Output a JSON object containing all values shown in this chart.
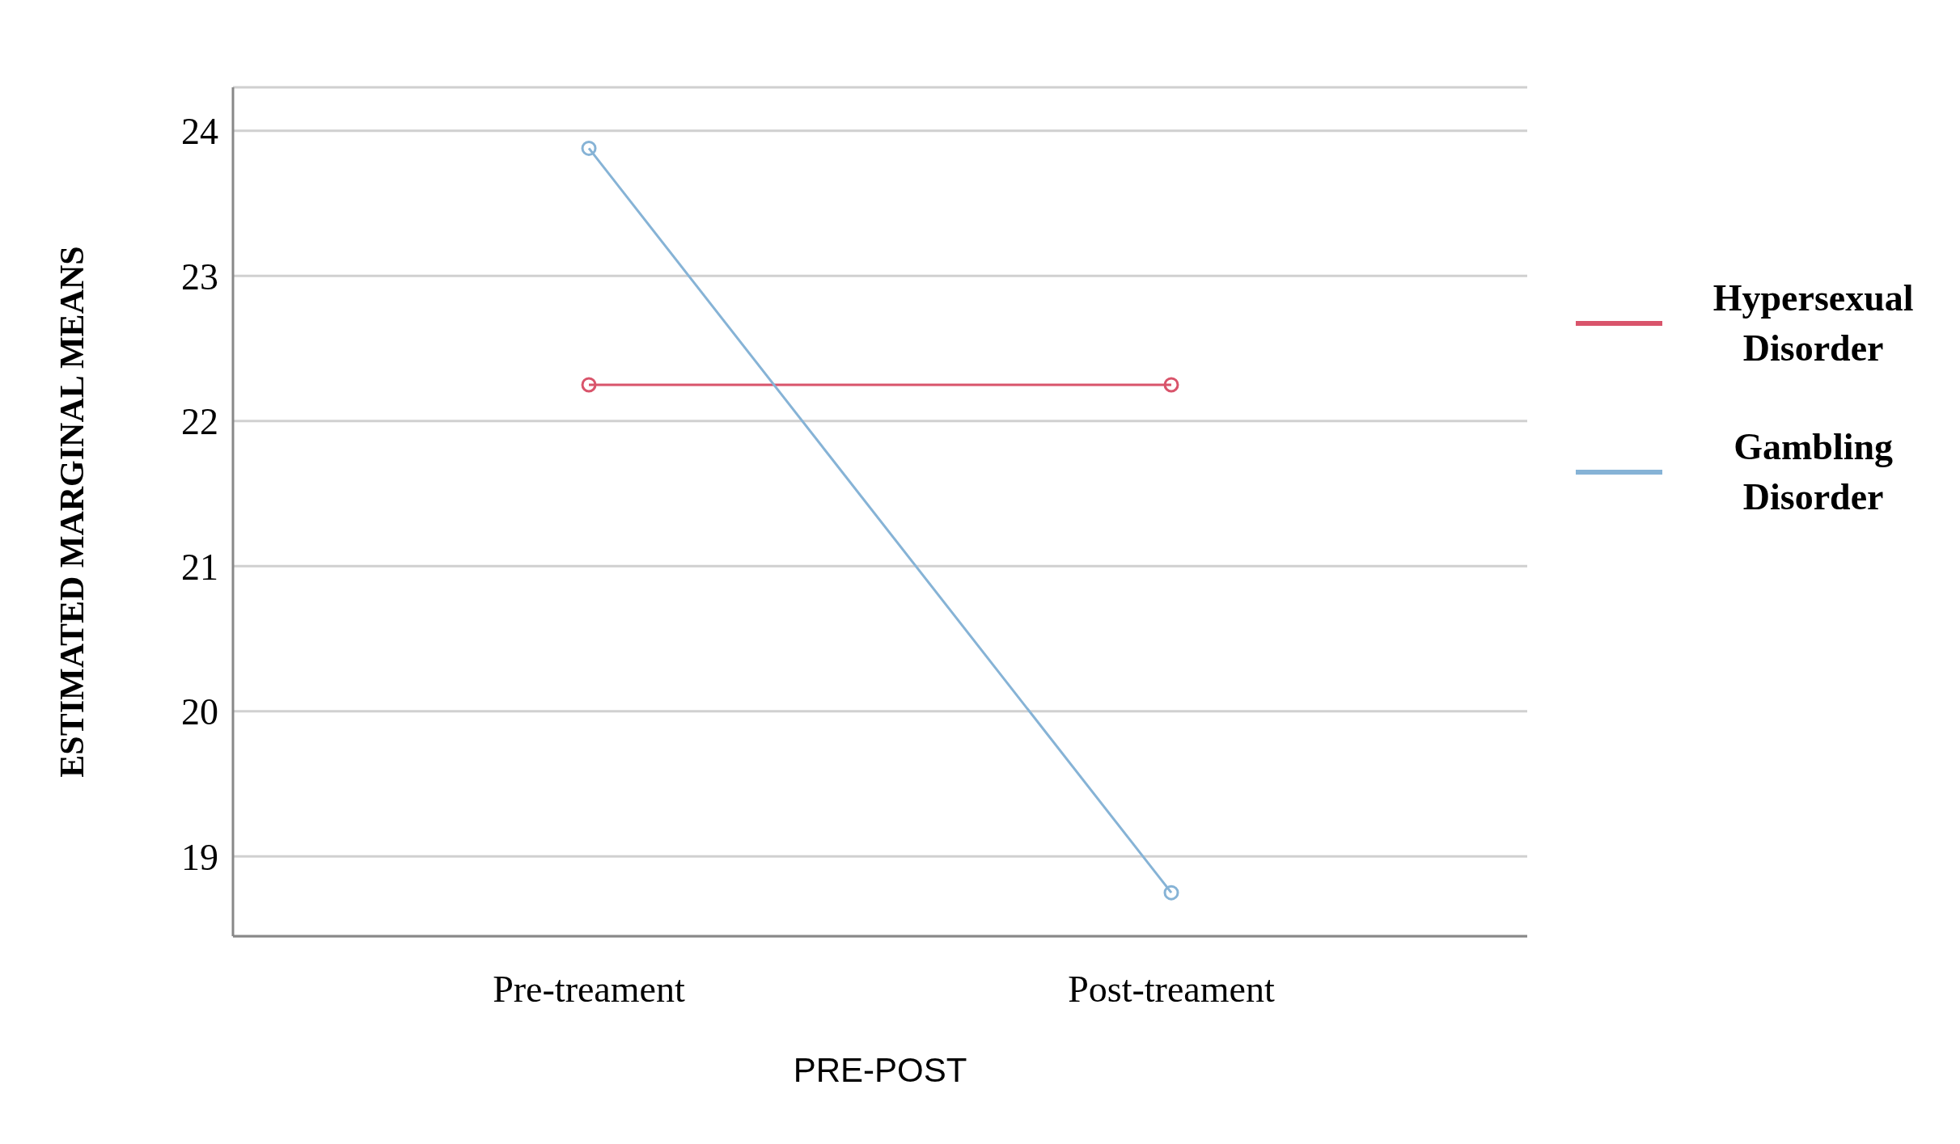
{
  "chart_data": {
    "type": "line",
    "xlabel": "PRE-POST",
    "ylabel": "ESTIMATED MARGINAL MEANS",
    "categories": [
      "Pre-treament",
      "Post-treament"
    ],
    "series": [
      {
        "name": "Hypersexual Disorder",
        "color": "#d9546b",
        "values": [
          22.25,
          22.25
        ]
      },
      {
        "name": "Gambling Disorder",
        "color": "#86b3d6",
        "values": [
          23.88,
          18.75
        ]
      }
    ],
    "ylim": [
      18.45,
      24.3
    ],
    "yticks": [
      19,
      20,
      21,
      22,
      23,
      24
    ],
    "grid": "y",
    "legend": "right",
    "marker": "circle",
    "line_style": "solid"
  }
}
